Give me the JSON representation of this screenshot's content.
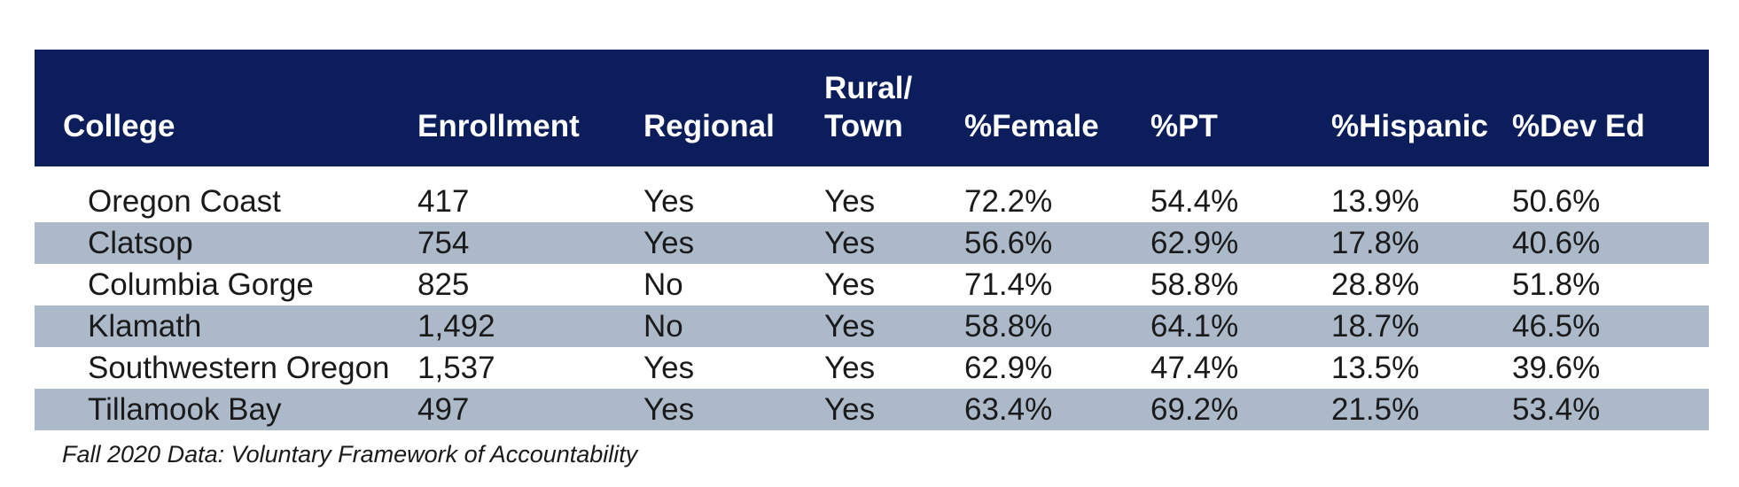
{
  "table": {
    "columns": [
      "College",
      "Enrollment",
      "Regional",
      "Rural/\nTown",
      "%Female",
      "%PT",
      "%Hispanic",
      "%Dev Ed"
    ],
    "header": {
      "college": "College",
      "enrollment": "Enrollment",
      "regional": "Regional",
      "rural_line1": "Rural/",
      "rural_line2": "Town",
      "female": "%Female",
      "pt": "%PT",
      "hispanic": "%Hispanic",
      "dev_ed": "%Dev Ed"
    },
    "rows": [
      [
        "Oregon Coast",
        "417",
        "Yes",
        "Yes",
        "72.2%",
        "54.4%",
        "13.9%",
        "50.6%"
      ],
      [
        "Clatsop",
        "754",
        "Yes",
        "Yes",
        "56.6%",
        "62.9%",
        "17.8%",
        "40.6%"
      ],
      [
        "Columbia Gorge",
        "825",
        "No",
        "Yes",
        "71.4%",
        "58.8%",
        "28.8%",
        "51.8%"
      ],
      [
        "Klamath",
        "1,492",
        "No",
        "Yes",
        "58.8%",
        "64.1%",
        "18.7%",
        "46.5%"
      ],
      [
        "Southwestern Oregon",
        "1,537",
        "Yes",
        "Yes",
        "62.9%",
        "47.4%",
        "13.5%",
        "39.6%"
      ],
      [
        "Tillamook Bay",
        "497",
        "Yes",
        "Yes",
        "63.4%",
        "69.2%",
        "21.5%",
        "53.4%"
      ]
    ]
  },
  "source_note": "Fall 2020 Data: Voluntary Framework of Accountability",
  "colors": {
    "header_bg": "#0b1e5b",
    "header_text": "#ffffff",
    "row_shade": "#acb9c9",
    "body_text": "#1a1a1a"
  }
}
